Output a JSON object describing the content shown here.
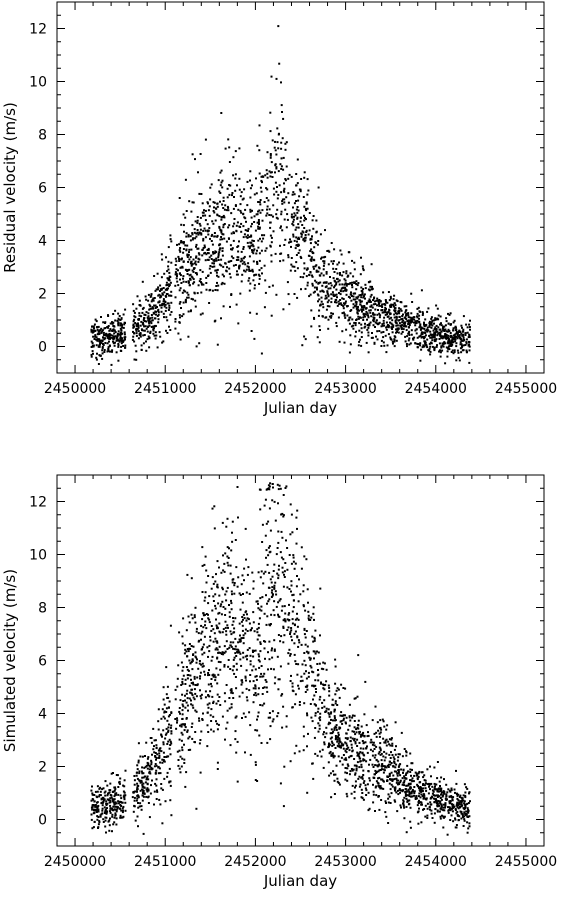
{
  "chart_data": [
    {
      "type": "scatter",
      "xlabel": "Julian day",
      "ylabel": "Residual velocity (m/s)",
      "xlim": [
        2449800,
        2455200
      ],
      "ylim": [
        -1,
        13
      ],
      "x_ticks": [
        2450000,
        2451000,
        2452000,
        2453000,
        2454000,
        2455000
      ],
      "x_tick_labels": [
        "2450000",
        "2451000",
        "2452000",
        "2453000",
        "2454000",
        "2455000"
      ],
      "y_ticks": [
        0,
        2,
        4,
        6,
        8,
        10,
        12
      ],
      "y_tick_labels": [
        "0",
        "2",
        "4",
        "6",
        "8",
        "10",
        "12"
      ],
      "grid": false,
      "series": [
        {
          "marker_color": "#000000",
          "envelope": [
            [
              2450200,
              0.3
            ],
            [
              2450500,
              0.5
            ],
            [
              2450800,
              1.0
            ],
            [
              2451000,
              1.8
            ],
            [
              2451150,
              2.5
            ],
            [
              2451400,
              3.8
            ],
            [
              2451700,
              4.3
            ],
            [
              2452000,
              3.8
            ],
            [
              2452150,
              5.5
            ],
            [
              2452250,
              6.8
            ],
            [
              2452400,
              4.5
            ],
            [
              2452600,
              3.6
            ],
            [
              2452800,
              2.2
            ],
            [
              2453000,
              1.8
            ],
            [
              2453200,
              1.5
            ],
            [
              2453500,
              1.0
            ],
            [
              2453800,
              0.7
            ],
            [
              2454100,
              0.4
            ],
            [
              2454350,
              0.3
            ]
          ]
        }
      ]
    },
    {
      "type": "scatter",
      "xlabel": "Julian day",
      "ylabel": "Simulated velocity (m/s)",
      "xlim": [
        2449800,
        2455200
      ],
      "ylim": [
        -1,
        13
      ],
      "x_ticks": [
        2450000,
        2451000,
        2452000,
        2453000,
        2454000,
        2455000
      ],
      "x_tick_labels": [
        "2450000",
        "2451000",
        "2452000",
        "2453000",
        "2454000",
        "2455000"
      ],
      "y_ticks": [
        0,
        2,
        4,
        6,
        8,
        10,
        12
      ],
      "y_tick_labels": [
        "0",
        "2",
        "4",
        "6",
        "8",
        "10",
        "12"
      ],
      "grid": false,
      "series": [
        {
          "marker_color": "#000000",
          "envelope": [
            [
              2450200,
              0.5
            ],
            [
              2450500,
              0.6
            ],
            [
              2450800,
              1.5
            ],
            [
              2451000,
              2.8
            ],
            [
              2451150,
              4.0
            ],
            [
              2451400,
              5.8
            ],
            [
              2451700,
              7.2
            ],
            [
              2452000,
              6.0
            ],
            [
              2452150,
              8.5
            ],
            [
              2452250,
              9.6
            ],
            [
              2452400,
              7.5
            ],
            [
              2452600,
              5.5
            ],
            [
              2452800,
              3.5
            ],
            [
              2453000,
              2.8
            ],
            [
              2453200,
              2.4
            ],
            [
              2453500,
              1.8
            ],
            [
              2453800,
              1.1
            ],
            [
              2454100,
              0.7
            ],
            [
              2454350,
              0.4
            ]
          ]
        }
      ]
    }
  ]
}
